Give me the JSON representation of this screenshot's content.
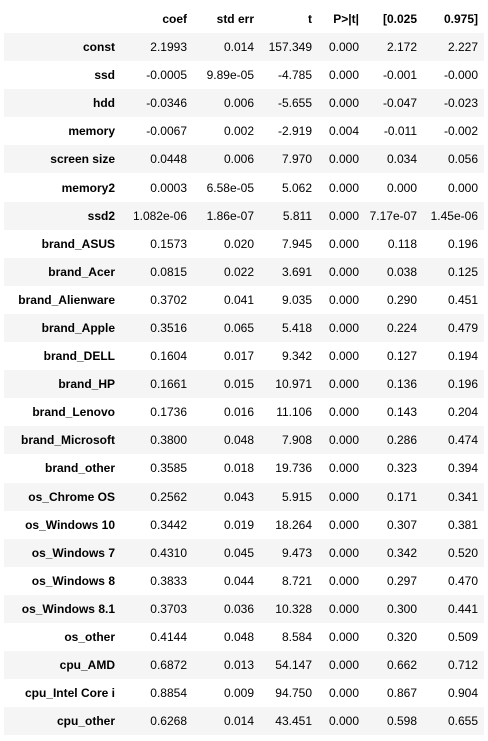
{
  "table": {
    "columns": [
      "",
      "coef",
      "std err",
      "t",
      "P>|t|",
      "[0.025",
      "0.975]"
    ],
    "rows": [
      {
        "label": "const",
        "values": [
          "2.1993",
          "0.014",
          "157.349",
          "0.000",
          "2.172",
          "2.227"
        ]
      },
      {
        "label": "ssd",
        "values": [
          "-0.0005",
          "9.89e-05",
          "-4.785",
          "0.000",
          "-0.001",
          "-0.000"
        ]
      },
      {
        "label": "hdd",
        "values": [
          "-0.0346",
          "0.006",
          "-5.655",
          "0.000",
          "-0.047",
          "-0.023"
        ]
      },
      {
        "label": "memory",
        "values": [
          "-0.0067",
          "0.002",
          "-2.919",
          "0.004",
          "-0.011",
          "-0.002"
        ]
      },
      {
        "label": "screen size",
        "values": [
          "0.0448",
          "0.006",
          "7.970",
          "0.000",
          "0.034",
          "0.056"
        ]
      },
      {
        "label": "memory2",
        "values": [
          "0.0003",
          "6.58e-05",
          "5.062",
          "0.000",
          "0.000",
          "0.000"
        ]
      },
      {
        "label": "ssd2",
        "values": [
          "1.082e-06",
          "1.86e-07",
          "5.811",
          "0.000",
          "7.17e-07",
          "1.45e-06"
        ]
      },
      {
        "label": "brand_ASUS",
        "values": [
          "0.1573",
          "0.020",
          "7.945",
          "0.000",
          "0.118",
          "0.196"
        ]
      },
      {
        "label": "brand_Acer",
        "values": [
          "0.0815",
          "0.022",
          "3.691",
          "0.000",
          "0.038",
          "0.125"
        ]
      },
      {
        "label": "brand_Alienware",
        "values": [
          "0.3702",
          "0.041",
          "9.035",
          "0.000",
          "0.290",
          "0.451"
        ]
      },
      {
        "label": "brand_Apple",
        "values": [
          "0.3516",
          "0.065",
          "5.418",
          "0.000",
          "0.224",
          "0.479"
        ]
      },
      {
        "label": "brand_DELL",
        "values": [
          "0.1604",
          "0.017",
          "9.342",
          "0.000",
          "0.127",
          "0.194"
        ]
      },
      {
        "label": "brand_HP",
        "values": [
          "0.1661",
          "0.015",
          "10.971",
          "0.000",
          "0.136",
          "0.196"
        ]
      },
      {
        "label": "brand_Lenovo",
        "values": [
          "0.1736",
          "0.016",
          "11.106",
          "0.000",
          "0.143",
          "0.204"
        ]
      },
      {
        "label": "brand_Microsoft",
        "values": [
          "0.3800",
          "0.048",
          "7.908",
          "0.000",
          "0.286",
          "0.474"
        ]
      },
      {
        "label": "brand_other",
        "values": [
          "0.3585",
          "0.018",
          "19.736",
          "0.000",
          "0.323",
          "0.394"
        ]
      },
      {
        "label": "os_Chrome OS",
        "values": [
          "0.2562",
          "0.043",
          "5.915",
          "0.000",
          "0.171",
          "0.341"
        ]
      },
      {
        "label": "os_Windows 10",
        "values": [
          "0.3442",
          "0.019",
          "18.264",
          "0.000",
          "0.307",
          "0.381"
        ]
      },
      {
        "label": "os_Windows 7",
        "values": [
          "0.4310",
          "0.045",
          "9.473",
          "0.000",
          "0.342",
          "0.520"
        ]
      },
      {
        "label": "os_Windows 8",
        "values": [
          "0.3833",
          "0.044",
          "8.721",
          "0.000",
          "0.297",
          "0.470"
        ]
      },
      {
        "label": "os_Windows 8.1",
        "values": [
          "0.3703",
          "0.036",
          "10.328",
          "0.000",
          "0.300",
          "0.441"
        ]
      },
      {
        "label": "os_other",
        "values": [
          "0.4144",
          "0.048",
          "8.584",
          "0.000",
          "0.320",
          "0.509"
        ]
      },
      {
        "label": "cpu_AMD",
        "values": [
          "0.6872",
          "0.013",
          "54.147",
          "0.000",
          "0.662",
          "0.712"
        ]
      },
      {
        "label": "cpu_Intel Core i",
        "values": [
          "0.8854",
          "0.009",
          "94.750",
          "0.000",
          "0.867",
          "0.904"
        ]
      },
      {
        "label": "cpu_other",
        "values": [
          "0.6268",
          "0.014",
          "43.451",
          "0.000",
          "0.598",
          "0.655"
        ]
      }
    ]
  }
}
